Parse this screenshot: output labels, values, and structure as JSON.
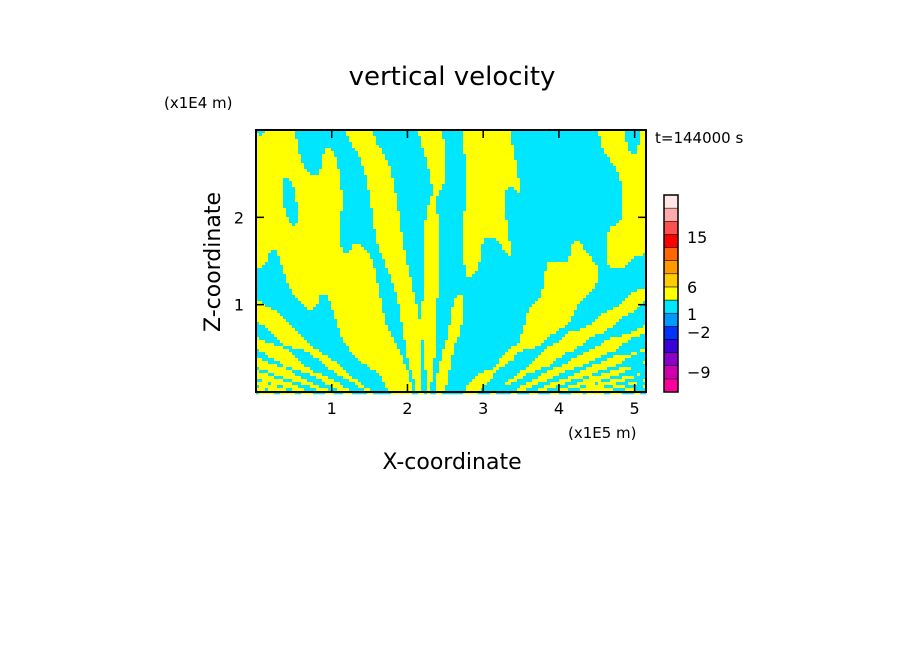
{
  "chart_data": {
    "type": "heatmap",
    "title": "vertical velocity",
    "xlabel": "X-coordinate",
    "ylabel": "Z-coordinate",
    "x_unit": "(x1E5 m)",
    "y_unit": "(x1E4 m)",
    "time_label": "t=144000 s",
    "xlim": [
      0,
      5.15
    ],
    "ylim": [
      0,
      3.0
    ],
    "x_ticks": [
      1,
      2,
      3,
      4,
      5
    ],
    "y_ticks": [
      1,
      2
    ],
    "field_colors": {
      "positive": "#ffff00",
      "negative": "#00e6ff"
    },
    "colorbar": {
      "levels": [
        {
          "color": "#ff009b"
        },
        {
          "color": "#d000b0"
        },
        {
          "color": "#8a00c8"
        },
        {
          "color": "#3c00d8"
        },
        {
          "color": "#0033ff"
        },
        {
          "color": "#0099ff"
        },
        {
          "color": "#00e6ff"
        },
        {
          "color": "#ffff00"
        },
        {
          "color": "#ffcc00"
        },
        {
          "color": "#ff9900"
        },
        {
          "color": "#ff6600"
        },
        {
          "color": "#ff0000"
        },
        {
          "color": "#ff5050"
        },
        {
          "color": "#ffaaaa"
        },
        {
          "color": "#ffe6e6"
        }
      ],
      "tick_labels": [
        "15",
        "6",
        "1",
        "−2",
        "−9"
      ]
    }
  }
}
